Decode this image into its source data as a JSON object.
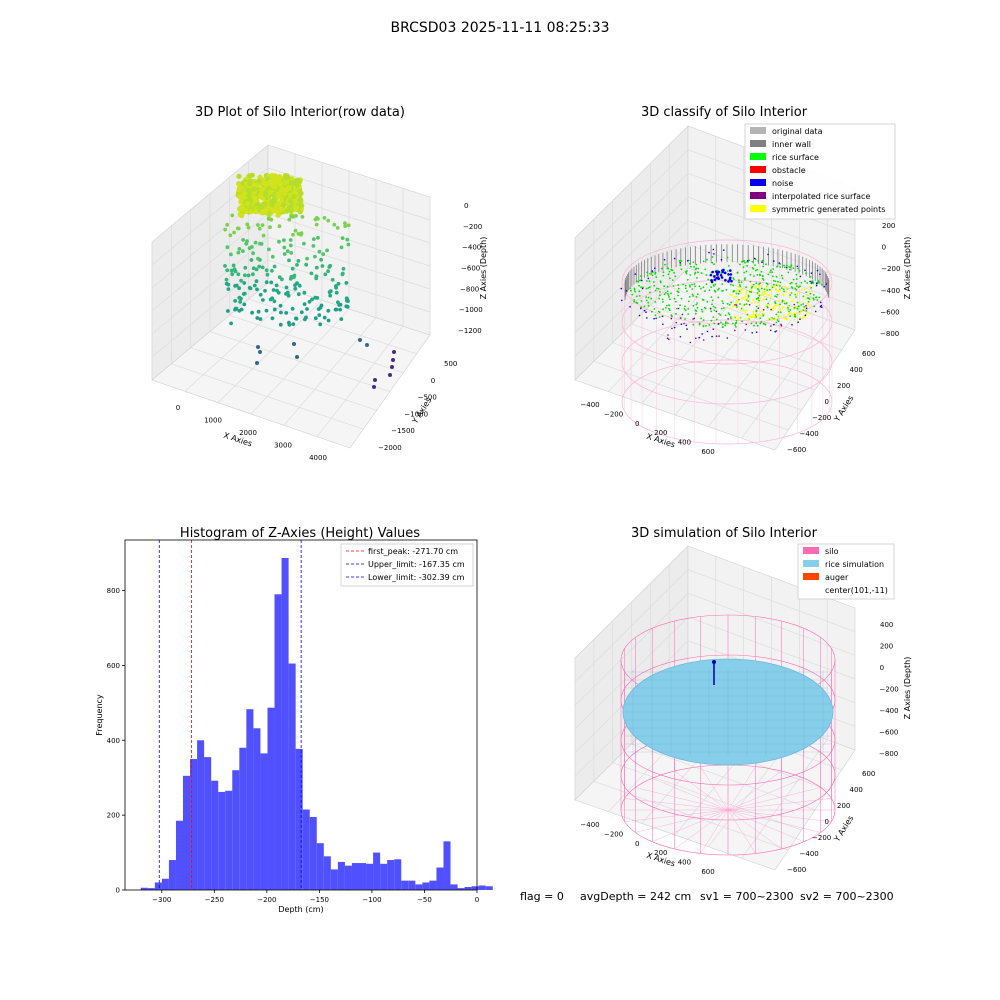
{
  "page": {
    "title": "BRCSD03 2025-11-11 08:25:33",
    "footer": {
      "flag": "flag = 0",
      "avg_depth": "avgDepth = 242 cm",
      "sv1": "sv1 = 700~2300",
      "sv2": "sv2 = 700~2300"
    }
  },
  "chart_data": [
    {
      "type": "scatter",
      "dims": 3,
      "title": "3D Plot of Silo Interior(row data)",
      "xlabel": "X Axies",
      "ylabel": "Y Axies",
      "zlabel": "Z Axies (Depth)",
      "x_ticks": [
        "0",
        "1000",
        "2000",
        "3000",
        "4000"
      ],
      "y_ticks": [
        "500",
        "0",
        "−500",
        "−1000",
        "−1500",
        "−2000"
      ],
      "z_ticks": [
        "0",
        "−200",
        "−400",
        "−600",
        "−800",
        "−1000",
        "−1200"
      ],
      "colormap": "viridis",
      "colors": {
        "high": "#c2df23",
        "mid": "#2eb37c",
        "low": "#440154"
      }
    },
    {
      "type": "scatter",
      "dims": 3,
      "title": "3D classify of Silo Interior",
      "xlabel": "X Axies",
      "ylabel": "Y Axies",
      "zlabel": "Z Axies (Depth)",
      "x_ticks": [
        "−400",
        "−200",
        "0",
        "200",
        "400",
        "600"
      ],
      "y_ticks": [
        "600",
        "400",
        "200",
        "0",
        "−200",
        "−400",
        "−600"
      ],
      "z_ticks": [
        "200",
        "0",
        "−200",
        "−400",
        "−600",
        "−800"
      ],
      "legend_position": "top-right",
      "legend": [
        {
          "label": "original data",
          "color": "#b4b4b4"
        },
        {
          "label": "inner wall",
          "color": "#808080"
        },
        {
          "label": "rice surface",
          "color": "#00ff00"
        },
        {
          "label": "obstacle",
          "color": "#ff0000"
        },
        {
          "label": "noise",
          "color": "#0000ee"
        },
        {
          "label": "interpolated rice surface",
          "color": "#800080"
        },
        {
          "label": "symmetric generated points",
          "color": "#ffff00"
        }
      ]
    },
    {
      "type": "bar",
      "title": "Histogram of Z-Axies (Height) Values",
      "xlabel": "Depth (cm)",
      "ylabel": "Frequency",
      "xlim": [
        -335,
        0
      ],
      "ylim": [
        0,
        935
      ],
      "x_ticks": [
        -300,
        -250,
        -200,
        -150,
        -100,
        -50,
        0
      ],
      "x_tick_labels": [
        "−300",
        "−250",
        "−200",
        "−150",
        "−100",
        "−50",
        "0"
      ],
      "y_ticks": [
        0,
        200,
        400,
        600,
        800
      ],
      "y_tick_labels": [
        "0",
        "200",
        "400",
        "600",
        "800"
      ],
      "bar_color": "#5050ff",
      "bin_start": -320,
      "bin_width": 6.7,
      "values": [
        6,
        5,
        20,
        30,
        80,
        185,
        305,
        350,
        400,
        355,
        292,
        262,
        265,
        320,
        380,
        483,
        432,
        365,
        487,
        790,
        887,
        605,
        377,
        215,
        195,
        125,
        90,
        55,
        75,
        65,
        72,
        72,
        70,
        100,
        70,
        80,
        82,
        25,
        25,
        15,
        20,
        25,
        60,
        130,
        15,
        5,
        8,
        10,
        12,
        10
      ],
      "vlines": [
        {
          "x": -271.7,
          "color": "#ff0000",
          "style": "dashed"
        },
        {
          "x": -167.35,
          "color": "#0000ff",
          "style": "dashed"
        },
        {
          "x": -302.39,
          "color": "#0000ff",
          "style": "dashed"
        }
      ],
      "legend_position": "top-right",
      "legend": [
        {
          "label": "first_peak: -271.70 cm",
          "color": "#ff0000"
        },
        {
          "label": "Upper_limit: -167.35 cm",
          "color": "#0000ff"
        },
        {
          "label": "Lower_limit: -302.39 cm",
          "color": "#0000ff"
        }
      ]
    },
    {
      "type": "scatter",
      "dims": 3,
      "title": "3D simulation of Silo Interior",
      "xlabel": "X Axies",
      "ylabel": "Y Axies",
      "zlabel": "Z Axies (Depth)",
      "x_ticks": [
        "−400",
        "−200",
        "0",
        "200",
        "400",
        "600"
      ],
      "y_ticks": [
        "600",
        "400",
        "200",
        "0",
        "−200",
        "−400",
        "−600"
      ],
      "z_ticks": [
        "400",
        "200",
        "0",
        "−200",
        "−400",
        "−600",
        "−800"
      ],
      "legend_position": "top-right",
      "legend": [
        {
          "label": "silo",
          "color": "#ff69b4"
        },
        {
          "label": "rice simulation",
          "color": "#87ceeb"
        },
        {
          "label": "auger",
          "color": "#ff4500"
        },
        {
          "label": "center(101,-11)",
          "color": ""
        }
      ]
    }
  ]
}
